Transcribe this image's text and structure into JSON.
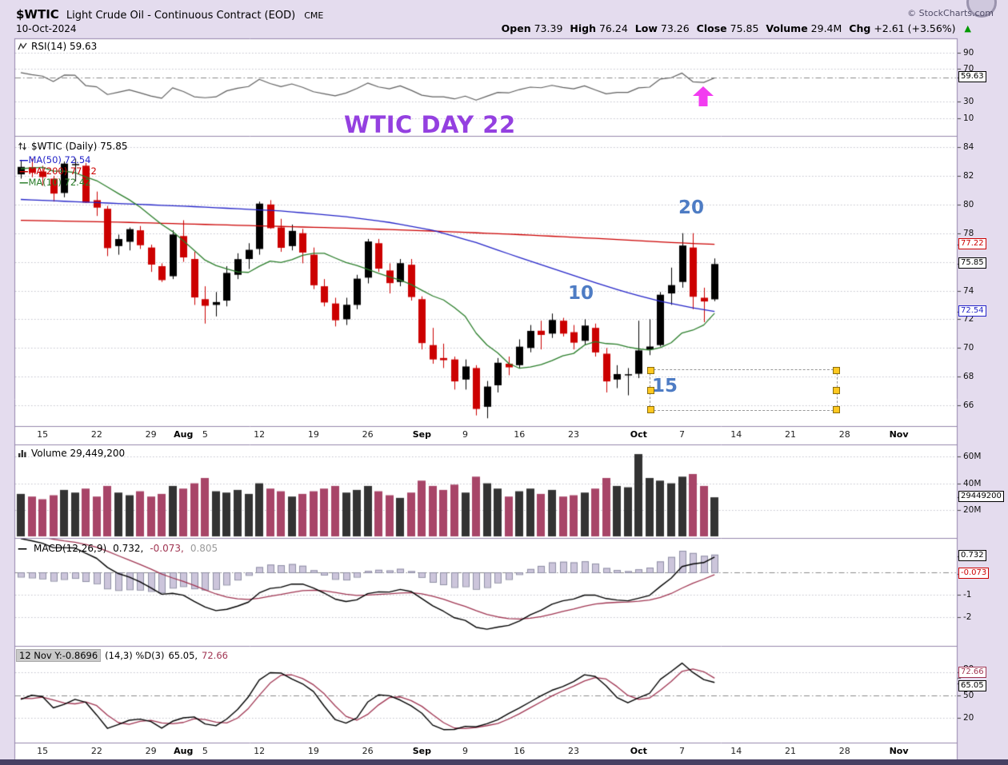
{
  "header": {
    "symbol": "$WTIC",
    "title": "Light Crude Oil - Continuous Contract (EOD)",
    "exchange": "CME",
    "copyright": "© StockCharts.com",
    "date": "10-Oct-2024",
    "up_glyph": "▲",
    "quote": {
      "open_label": "Open",
      "open": "73.39",
      "high_label": "High",
      "high": "76.24",
      "low_label": "Low",
      "low": "73.26",
      "close_label": "Close",
      "close": "75.85",
      "volume_label": "Volume",
      "volume": "29.4M",
      "chg_label": "Chg",
      "chg": "+2.61 (+3.56%)"
    }
  },
  "icons": {
    "dash": "—"
  },
  "panels": {
    "rsi": {
      "label": "RSI(14) 59.63"
    },
    "price": {
      "label": "$WTIC (Daily) 75.85",
      "ma50_label": "MA(50) 72.54",
      "ma200_label": "MA(200) 77.22",
      "ma10_label": "MA(10) 72.42"
    },
    "volume": {
      "label": "Volume 29,449,200"
    },
    "macd": {
      "label": "MACD(12,26,9)",
      "v1": "0.732,",
      "v2": "-0.073,",
      "v3": "0.805"
    },
    "stoch": {
      "tooltip": "12 Nov Y:-0.8696",
      "label": "(14,3) %D(3)",
      "k": "65.05,",
      "d": "72.66"
    }
  },
  "annotations": {
    "big_text": "WTIC DAY 22",
    "n20": "20",
    "n10": "10",
    "n15": "15"
  },
  "axes": {
    "rsi": {
      "plain": [
        {
          "t": "90",
          "v": 90
        },
        {
          "t": "70",
          "v": 70
        },
        {
          "t": "30",
          "v": 30
        },
        {
          "t": "10",
          "v": 10
        }
      ],
      "boxes": [
        {
          "t": "59.63",
          "v": 59.63,
          "c": "#000000"
        }
      ]
    },
    "price": {
      "plain": [
        {
          "t": "84",
          "v": 84
        },
        {
          "t": "82",
          "v": 82
        },
        {
          "t": "80",
          "v": 80
        },
        {
          "t": "78",
          "v": 78
        },
        {
          "t": "74",
          "v": 74
        },
        {
          "t": "72",
          "v": 72
        },
        {
          "t": "70",
          "v": 70
        },
        {
          "t": "68",
          "v": 68
        },
        {
          "t": "66",
          "v": 66
        }
      ],
      "boxes": [
        {
          "t": "77.22",
          "v": 77.22,
          "c": "#CC0000"
        },
        {
          "t": "75.85",
          "v": 75.85,
          "c": "#000000"
        },
        {
          "t": "72.54",
          "v": 72.54,
          "c": "#2323C8"
        }
      ]
    },
    "volume": {
      "plain": [
        {
          "t": "60M",
          "v": 60
        },
        {
          "t": "40M",
          "v": 40
        },
        {
          "t": "20M",
          "v": 20
        }
      ],
      "boxes": [
        {
          "t": "29449200",
          "v": 29.4492,
          "c": "#000000"
        }
      ]
    },
    "macd": {
      "plain": [
        {
          "t": "-1",
          "v": -1
        },
        {
          "t": "-2",
          "v": -2
        }
      ],
      "boxes": [
        {
          "t": "0.732",
          "v": 0.732,
          "c": "#000000"
        },
        {
          "t": "-0.073",
          "v": -0.073,
          "c": "#CC0000"
        }
      ]
    },
    "stoch": {
      "plain": [
        {
          "t": "80",
          "v": 80,
          "dy": -4
        },
        {
          "t": "50",
          "v": 50
        },
        {
          "t": "20",
          "v": 20
        }
      ],
      "boxes": [
        {
          "t": "72.66",
          "v": 72.66,
          "c": "#A03552",
          "dy": -6
        },
        {
          "t": "65.05",
          "v": 65.05,
          "c": "#000000",
          "dy": 4
        }
      ]
    }
  },
  "colors": {
    "bg": "#E4DCEE",
    "panel": "#FFFFFF",
    "border": "#9586AD",
    "grid": "#C4C4CE",
    "dashline": "#8A8A8A",
    "up": "#000000",
    "down": "#CC0000",
    "ma50": "#2323C8",
    "ma200": "#CC0000",
    "ma10": "#2A7E2A",
    "rsi": "#606060",
    "vol_up": "#333333",
    "vol_down": "#A84568",
    "macd": "#000000",
    "signal": "#A03552",
    "hist_fill": "#CCC5DB",
    "hist_stroke": "#8F8FA5",
    "annot_purple": "#9440E0",
    "annot_blue": "#4E7CC4",
    "annot_magenta": "#F23CF0",
    "handle": "#FFC820",
    "chg_green": "#009900"
  },
  "chart_data": {
    "type": "candlestick",
    "symbol": "$WTIC",
    "timeframe": "Daily",
    "title": "Light Crude Oil - Continuous Contract (EOD)",
    "ylim": [
      66,
      84
    ],
    "last_quote": {
      "open": 73.39,
      "high": 76.24,
      "low": 73.26,
      "close": 75.85,
      "volume": 29449200,
      "change": 2.61,
      "change_pct": 3.56
    },
    "indicators": {
      "rsi_period": 14,
      "rsi_last": 59.63,
      "ma50_last": 72.54,
      "ma200_last": 77.22,
      "ma10_last": 72.42,
      "macd_params": [
        12,
        26,
        9
      ],
      "macd_last": [
        0.732,
        -0.073,
        0.805
      ],
      "stoch_params": "(14,3) %D(3)",
      "stoch_last": [
        65.05,
        72.66
      ]
    },
    "dates": [
      "2024-07-11",
      "2024-07-12",
      "2024-07-15",
      "2024-07-16",
      "2024-07-17",
      "2024-07-18",
      "2024-07-19",
      "2024-07-22",
      "2024-07-23",
      "2024-07-24",
      "2024-07-25",
      "2024-07-26",
      "2024-07-29",
      "2024-07-30",
      "2024-07-31",
      "2024-08-01",
      "2024-08-02",
      "2024-08-05",
      "2024-08-06",
      "2024-08-07",
      "2024-08-08",
      "2024-08-09",
      "2024-08-12",
      "2024-08-13",
      "2024-08-14",
      "2024-08-15",
      "2024-08-16",
      "2024-08-19",
      "2024-08-20",
      "2024-08-21",
      "2024-08-22",
      "2024-08-23",
      "2024-08-26",
      "2024-08-27",
      "2024-08-28",
      "2024-08-29",
      "2024-08-30",
      "2024-09-03",
      "2024-09-04",
      "2024-09-05",
      "2024-09-06",
      "2024-09-09",
      "2024-09-10",
      "2024-09-11",
      "2024-09-12",
      "2024-09-13",
      "2024-09-16",
      "2024-09-17",
      "2024-09-18",
      "2024-09-19",
      "2024-09-20",
      "2024-09-23",
      "2024-09-24",
      "2024-09-25",
      "2024-09-26",
      "2024-09-27",
      "2024-09-30",
      "2024-10-01",
      "2024-10-02",
      "2024-10-03",
      "2024-10-04",
      "2024-10-07",
      "2024-10-08",
      "2024-10-09",
      "2024-10-10"
    ],
    "ohlc": [
      [
        82.1,
        83.1,
        81.8,
        82.62
      ],
      [
        82.6,
        83.2,
        81.9,
        82.21
      ],
      [
        82.3,
        82.7,
        81.3,
        81.91
      ],
      [
        81.8,
        82.0,
        80.2,
        80.76
      ],
      [
        80.8,
        83.0,
        80.5,
        82.85
      ],
      [
        82.8,
        83.2,
        81.6,
        82.82
      ],
      [
        82.7,
        82.9,
        80.1,
        80.13
      ],
      [
        80.3,
        80.9,
        79.2,
        79.78
      ],
      [
        79.7,
        79.9,
        76.4,
        76.96
      ],
      [
        77.1,
        77.9,
        76.5,
        77.59
      ],
      [
        77.4,
        78.4,
        76.8,
        78.28
      ],
      [
        78.2,
        78.5,
        76.9,
        77.16
      ],
      [
        77.0,
        77.2,
        75.3,
        75.81
      ],
      [
        75.7,
        75.9,
        74.6,
        74.73
      ],
      [
        75.0,
        78.2,
        74.8,
        77.91
      ],
      [
        77.8,
        78.9,
        76.0,
        76.31
      ],
      [
        76.2,
        76.7,
        73.0,
        73.52
      ],
      [
        73.4,
        74.3,
        71.7,
        72.94
      ],
      [
        73.0,
        73.9,
        72.2,
        73.2
      ],
      [
        73.3,
        75.7,
        72.9,
        75.23
      ],
      [
        75.1,
        76.6,
        74.8,
        76.19
      ],
      [
        76.2,
        77.3,
        75.5,
        76.84
      ],
      [
        76.9,
        80.2,
        76.5,
        80.06
      ],
      [
        80.0,
        80.3,
        78.3,
        78.35
      ],
      [
        78.4,
        79.0,
        76.7,
        76.98
      ],
      [
        77.1,
        78.6,
        76.8,
        78.16
      ],
      [
        78.0,
        78.3,
        75.9,
        76.65
      ],
      [
        76.5,
        77.0,
        74.1,
        74.37
      ],
      [
        74.3,
        74.8,
        72.9,
        73.17
      ],
      [
        73.1,
        73.5,
        71.5,
        71.93
      ],
      [
        72.0,
        73.5,
        71.6,
        73.01
      ],
      [
        73.0,
        75.1,
        72.7,
        74.83
      ],
      [
        74.9,
        77.6,
        74.5,
        77.42
      ],
      [
        77.3,
        77.6,
        75.3,
        75.53
      ],
      [
        75.4,
        75.9,
        73.8,
        74.52
      ],
      [
        74.6,
        76.2,
        74.3,
        75.91
      ],
      [
        75.8,
        76.2,
        73.3,
        73.55
      ],
      [
        73.4,
        73.6,
        69.9,
        70.34
      ],
      [
        70.2,
        71.4,
        68.9,
        69.2
      ],
      [
        69.3,
        70.3,
        68.6,
        69.15
      ],
      [
        69.2,
        69.4,
        67.1,
        67.67
      ],
      [
        67.8,
        69.2,
        67.1,
        68.71
      ],
      [
        68.6,
        68.8,
        65.3,
        65.75
      ],
      [
        65.9,
        67.7,
        65.1,
        67.31
      ],
      [
        67.4,
        69.3,
        66.9,
        68.97
      ],
      [
        68.9,
        69.4,
        68.1,
        68.65
      ],
      [
        68.8,
        70.6,
        68.6,
        70.09
      ],
      [
        70.0,
        71.6,
        69.7,
        71.19
      ],
      [
        71.2,
        71.9,
        69.9,
        70.91
      ],
      [
        71.0,
        72.4,
        70.7,
        71.95
      ],
      [
        71.9,
        72.1,
        70.8,
        71.0
      ],
      [
        71.1,
        71.6,
        69.9,
        70.37
      ],
      [
        70.5,
        72.0,
        70.2,
        71.56
      ],
      [
        71.4,
        71.7,
        69.4,
        69.69
      ],
      [
        69.6,
        70.0,
        66.9,
        67.67
      ],
      [
        67.8,
        68.8,
        67.2,
        68.18
      ],
      [
        68.1,
        68.6,
        66.7,
        68.17
      ],
      [
        68.2,
        71.9,
        67.9,
        69.83
      ],
      [
        69.9,
        72.0,
        69.5,
        70.1
      ],
      [
        70.2,
        73.9,
        70.1,
        73.71
      ],
      [
        73.8,
        75.6,
        73.0,
        74.38
      ],
      [
        74.6,
        78.0,
        74.2,
        77.14
      ],
      [
        77.0,
        78.0,
        72.7,
        73.57
      ],
      [
        73.5,
        74.2,
        71.8,
        73.24
      ],
      [
        73.39,
        76.24,
        73.26,
        75.85
      ]
    ],
    "volume_m": [
      32,
      30,
      28,
      31,
      35,
      33,
      36,
      30,
      38,
      33,
      31,
      34,
      30,
      32,
      38,
      36,
      40,
      44,
      34,
      33,
      35,
      32,
      40,
      36,
      34,
      30,
      32,
      34,
      36,
      38,
      33,
      35,
      38,
      34,
      31,
      29,
      33,
      42,
      38,
      35,
      39,
      33,
      45,
      40,
      36,
      30,
      34,
      36,
      32,
      35,
      30,
      31,
      33,
      36,
      44,
      38,
      37,
      62,
      44,
      42,
      40,
      45,
      47,
      38,
      29.45
    ],
    "prehistory_closes": [
      74.22,
      73.25,
      74.07,
      75.55,
      75.53,
      77.74,
      77.9,
      78.5,
      78.62,
      78.45,
      80.33,
      81.57,
      81.57,
      82.17,
      80.73,
      81.63,
      80.83,
      80.9,
      81.74,
      81.54,
      83.38,
      82.81,
      83.88,
      83.16,
      82.33,
      81.41,
      82.1
    ],
    "ma50_points": [
      [
        0,
        80.35
      ],
      [
        8,
        80.1
      ],
      [
        16,
        79.85
      ],
      [
        24,
        79.55
      ],
      [
        30,
        79.15
      ],
      [
        34,
        78.75
      ],
      [
        38,
        78.2
      ],
      [
        42,
        77.35
      ],
      [
        46,
        76.3
      ],
      [
        50,
        75.3
      ],
      [
        53,
        74.55
      ],
      [
        56,
        73.85
      ],
      [
        59,
        73.25
      ],
      [
        62,
        72.8
      ],
      [
        64,
        72.54
      ]
    ],
    "ma200_points": [
      [
        0,
        78.9
      ],
      [
        10,
        78.75
      ],
      [
        20,
        78.55
      ],
      [
        30,
        78.35
      ],
      [
        38,
        78.15
      ],
      [
        46,
        77.9
      ],
      [
        54,
        77.6
      ],
      [
        60,
        77.35
      ],
      [
        64,
        77.22
      ]
    ],
    "xticks": [
      {
        "l": "15",
        "i": 2
      },
      {
        "l": "22",
        "i": 7
      },
      {
        "l": "29",
        "i": 12
      },
      {
        "l": "Aug",
        "i": 15,
        "b": true
      },
      {
        "l": "5",
        "i": 17
      },
      {
        "l": "12",
        "i": 22
      },
      {
        "l": "19",
        "i": 27
      },
      {
        "l": "26",
        "i": 32
      },
      {
        "l": "Sep",
        "i": 37,
        "b": true
      },
      {
        "l": "9",
        "i": 41
      },
      {
        "l": "16",
        "i": 46
      },
      {
        "l": "23",
        "i": 51
      },
      {
        "l": "Oct",
        "i": 57,
        "b": true
      },
      {
        "l": "7",
        "i": 61
      },
      {
        "l": "14",
        "i": 66
      },
      {
        "l": "21",
        "i": 71
      },
      {
        "l": "28",
        "i": 76
      },
      {
        "l": "Nov",
        "i": 81,
        "b": true
      }
    ]
  }
}
